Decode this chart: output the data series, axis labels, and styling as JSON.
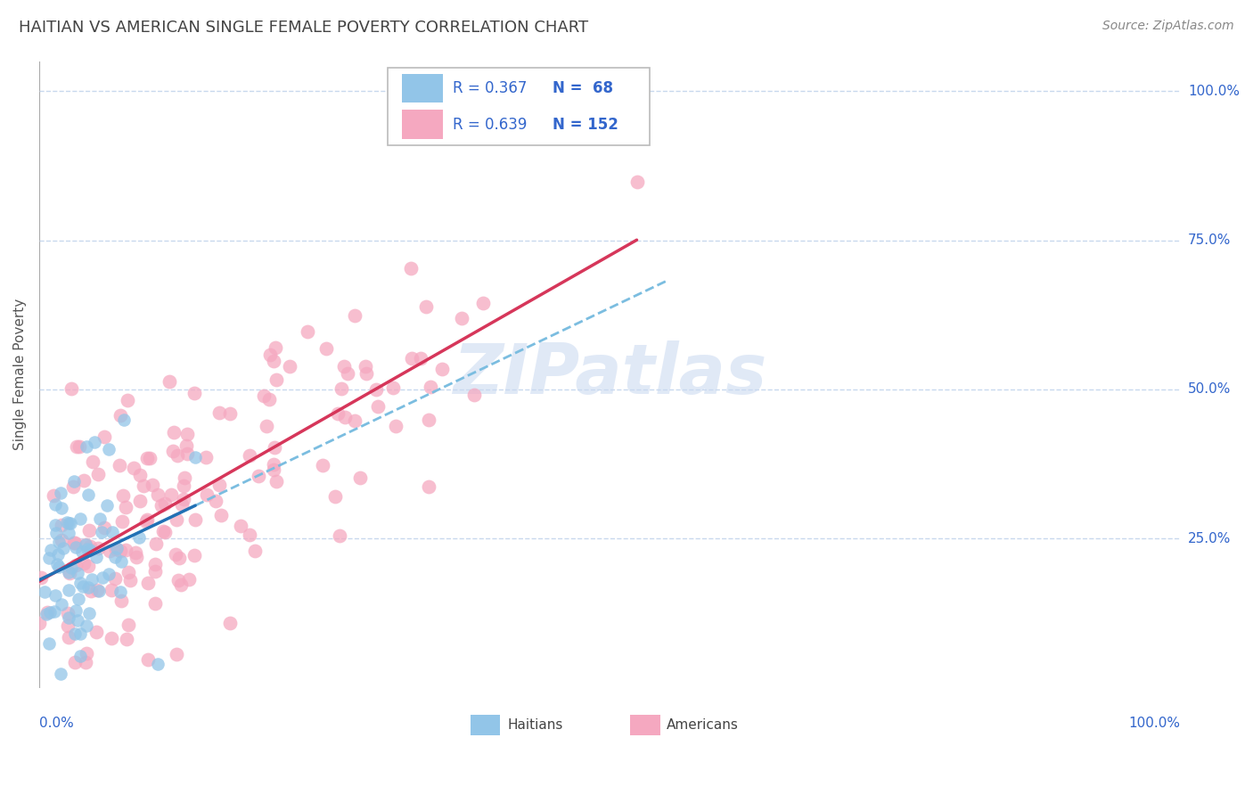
{
  "title": "HAITIAN VS AMERICAN SINGLE FEMALE POVERTY CORRELATION CHART",
  "source": "Source: ZipAtlas.com",
  "ylabel": "Single Female Poverty",
  "haitians_R": 0.367,
  "haitians_N": 68,
  "americans_R": 0.639,
  "americans_N": 152,
  "blue_scatter_color": "#92c5e8",
  "pink_scatter_color": "#f5a8c0",
  "blue_line_color": "#2171b5",
  "pink_line_color": "#d6365a",
  "dash_line_color": "#7bbde0",
  "legend_text_color": "#1a6fbd",
  "title_color": "#444444",
  "grid_color": "#c8d8ee",
  "watermark_color": "#c8d8f0",
  "axis_label_color": "#3366cc",
  "xlim": [
    0,
    1.0
  ],
  "ylim": [
    0,
    1.05
  ],
  "ytick_positions": [
    0.25,
    0.5,
    0.75,
    1.0
  ],
  "ytick_labels": [
    "25.0%",
    "50.0%",
    "75.0%",
    "100.0%"
  ],
  "haitians_seed": 42,
  "americans_seed": 123
}
